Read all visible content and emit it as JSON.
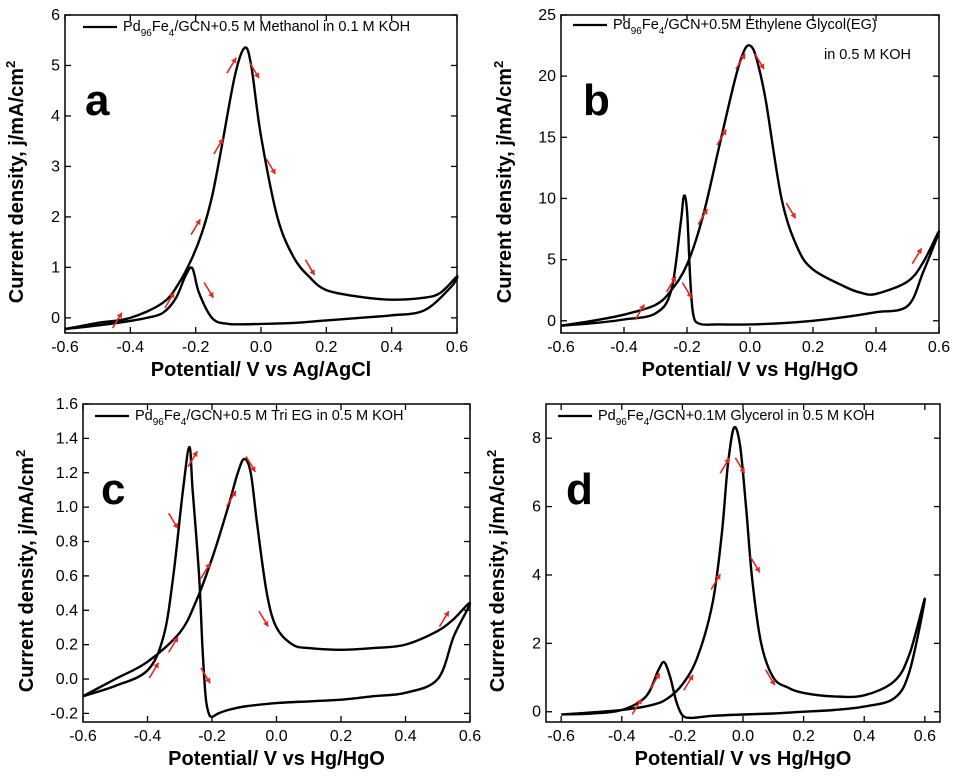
{
  "colors": {
    "curve": "#000000",
    "arrow": "#e8271f"
  },
  "chart_data": [
    {
      "type": "line",
      "letter": "a",
      "legend": {
        "label": "Pd96Fe4/GCN+0.5 M Methanol in 0.1 M KOH",
        "line2": ""
      },
      "xlabel": "Potential/ V vs Ag/AgCl",
      "ylabel": "Current density, j/mA/cm2",
      "xlim": [
        -0.6,
        0.6
      ],
      "ylim": [
        -0.3,
        6
      ],
      "xticks": [
        "-0.6",
        "-0.4",
        "-0.2",
        "0.0",
        "0.2",
        "0.4",
        "0.6"
      ],
      "yticks": [
        "0",
        "1",
        "2",
        "3",
        "4",
        "5",
        "6"
      ],
      "series": [
        {
          "x": [
            -0.6,
            -0.5,
            -0.4,
            -0.3,
            -0.25,
            -0.21,
            -0.18,
            -0.15,
            -0.12,
            -0.08,
            -0.05,
            -0.03,
            0.0,
            0.05,
            0.1,
            0.15,
            0.2,
            0.3,
            0.4,
            0.5,
            0.55,
            0.6,
            0.58,
            0.5,
            0.4,
            0.3,
            0.2,
            0.1,
            0.0,
            -0.1,
            -0.15,
            -0.19,
            -0.21,
            -0.23,
            -0.26,
            -0.3,
            -0.35,
            -0.4,
            -0.5,
            -0.6
          ],
          "y": [
            -0.22,
            -0.1,
            0.0,
            0.3,
            0.7,
            1.2,
            1.7,
            2.4,
            3.4,
            4.8,
            5.35,
            5.0,
            3.6,
            2.0,
            1.2,
            0.8,
            0.55,
            0.42,
            0.36,
            0.4,
            0.5,
            0.82,
            0.6,
            0.15,
            0.05,
            0.0,
            -0.05,
            -0.1,
            -0.12,
            -0.12,
            0.0,
            0.5,
            0.98,
            0.85,
            0.4,
            0.1,
            0.0,
            -0.06,
            -0.15,
            -0.22
          ]
        }
      ],
      "arrows": [
        {
          "x": -0.44,
          "y": -0.05,
          "dx": 1,
          "dy": 1
        },
        {
          "x": -0.28,
          "y": 0.35,
          "dx": 1,
          "dy": 1
        },
        {
          "x": -0.2,
          "y": 1.8,
          "dx": 1,
          "dy": 1
        },
        {
          "x": -0.13,
          "y": 3.4,
          "dx": 1,
          "dy": 1
        },
        {
          "x": -0.09,
          "y": 5.0,
          "dx": 1,
          "dy": 1
        },
        {
          "x": -0.02,
          "y": 4.9,
          "dx": 1,
          "dy": -1
        },
        {
          "x": 0.03,
          "y": 3.0,
          "dx": 1,
          "dy": -1
        },
        {
          "x": 0.15,
          "y": 1.0,
          "dx": 1,
          "dy": -1
        },
        {
          "x": -0.16,
          "y": 0.55,
          "dx": 1,
          "dy": -1
        }
      ]
    },
    {
      "type": "line",
      "letter": "b",
      "legend": {
        "label": "Pd96Fe4/GCN+0.5M Ethylene Glycol(EG)",
        "line2": "in 0.5 M KOH"
      },
      "xlabel": "Potential/ V vs Hg/HgO",
      "ylabel": "Current density, j/mA/cm2",
      "xlim": [
        -0.6,
        0.6
      ],
      "ylim": [
        -1,
        25
      ],
      "xticks": [
        "-0.6",
        "-0.4",
        "-0.2",
        "0.0",
        "0.2",
        "0.4",
        "0.6"
      ],
      "yticks": [
        "0",
        "5",
        "10",
        "15",
        "20",
        "25"
      ],
      "series": [
        {
          "x": [
            -0.6,
            -0.5,
            -0.4,
            -0.3,
            -0.25,
            -0.2,
            -0.15,
            -0.1,
            -0.05,
            -0.02,
            0.0,
            0.02,
            0.05,
            0.1,
            0.15,
            0.2,
            0.3,
            0.35,
            0.4,
            0.5,
            0.55,
            0.6,
            0.55,
            0.5,
            0.4,
            0.3,
            0.2,
            0.1,
            0.0,
            -0.1,
            -0.16,
            -0.18,
            -0.19,
            -0.2,
            -0.21,
            -0.22,
            -0.25,
            -0.3,
            -0.4,
            -0.5,
            -0.6
          ],
          "y": [
            -0.4,
            0.0,
            0.5,
            1.3,
            2.5,
            4.6,
            8.5,
            14.0,
            19.5,
            22.0,
            22.5,
            21.5,
            18.0,
            10.0,
            6.0,
            4.2,
            2.8,
            2.3,
            2.2,
            3.2,
            4.8,
            7.3,
            4.0,
            1.2,
            0.7,
            0.3,
            0.0,
            -0.2,
            -0.3,
            -0.3,
            -0.25,
            0.5,
            3.5,
            9.0,
            10.2,
            8.0,
            2.5,
            0.6,
            0.1,
            -0.2,
            -0.4
          ]
        }
      ],
      "arrows": [
        {
          "x": -0.35,
          "y": 0.7,
          "dx": 1,
          "dy": 1
        },
        {
          "x": -0.25,
          "y": 3.0,
          "dx": 1,
          "dy": 1
        },
        {
          "x": -0.15,
          "y": 8.5,
          "dx": 1,
          "dy": 1
        },
        {
          "x": -0.09,
          "y": 15.0,
          "dx": 1,
          "dy": 1
        },
        {
          "x": -0.03,
          "y": 21.2,
          "dx": 1,
          "dy": 1
        },
        {
          "x": 0.03,
          "y": 21.2,
          "dx": 1,
          "dy": -1
        },
        {
          "x": 0.13,
          "y": 9.0,
          "dx": 1,
          "dy": -1
        },
        {
          "x": 0.53,
          "y": 5.3,
          "dx": 1,
          "dy": 1
        },
        {
          "x": -0.2,
          "y": 2.5,
          "dx": 1,
          "dy": -1
        }
      ]
    },
    {
      "type": "line",
      "letter": "c",
      "legend": {
        "label": "Pd96Fe4/GCN+0.5 M Tri EG in 0.5 M KOH",
        "line2": ""
      },
      "xlabel": "Potential/ V vs Hg/HgO",
      "ylabel": "Current density, j/mA/cm2",
      "xlim": [
        -0.6,
        0.6
      ],
      "ylim": [
        -0.25,
        1.6
      ],
      "xticks": [
        "-0.6",
        "-0.4",
        "-0.2",
        "0.0",
        "0.2",
        "0.4",
        "0.6"
      ],
      "yticks": [
        "-0.2",
        "0.0",
        "0.2",
        "0.4",
        "0.6",
        "0.8",
        "1.0",
        "1.2",
        "1.4",
        "1.6"
      ],
      "series": [
        {
          "x": [
            -0.6,
            -0.5,
            -0.4,
            -0.3,
            -0.25,
            -0.2,
            -0.15,
            -0.12,
            -0.1,
            -0.08,
            -0.06,
            -0.03,
            0.0,
            0.05,
            0.1,
            0.2,
            0.3,
            0.4,
            0.5,
            0.55,
            0.6,
            0.55,
            0.5,
            0.4,
            0.3,
            0.2,
            0.1,
            0.0,
            -0.1,
            -0.15,
            -0.18,
            -0.2,
            -0.21,
            -0.22,
            -0.23,
            -0.24,
            -0.26,
            -0.27,
            -0.29,
            -0.32,
            -0.35,
            -0.4,
            -0.5,
            -0.6
          ],
          "y": [
            -0.1,
            0.0,
            0.1,
            0.27,
            0.45,
            0.7,
            1.0,
            1.2,
            1.28,
            1.2,
            0.9,
            0.5,
            0.3,
            0.2,
            0.18,
            0.17,
            0.18,
            0.2,
            0.28,
            0.35,
            0.44,
            0.25,
            0.0,
            -0.08,
            -0.1,
            -0.12,
            -0.13,
            -0.14,
            -0.16,
            -0.18,
            -0.2,
            -0.22,
            -0.2,
            -0.1,
            0.2,
            0.6,
            1.1,
            1.35,
            1.1,
            0.6,
            0.25,
            0.05,
            -0.04,
            -0.1
          ]
        }
      ],
      "arrows": [
        {
          "x": -0.38,
          "y": 0.05,
          "dx": 1,
          "dy": 1
        },
        {
          "x": -0.32,
          "y": 0.2,
          "dx": 1,
          "dy": 1
        },
        {
          "x": -0.22,
          "y": 0.63,
          "dx": 1,
          "dy": 1
        },
        {
          "x": -0.14,
          "y": 1.05,
          "dx": 1,
          "dy": 1
        },
        {
          "x": -0.26,
          "y": 1.28,
          "dx": 1,
          "dy": 1
        },
        {
          "x": -0.08,
          "y": 1.25,
          "dx": 1,
          "dy": -1
        },
        {
          "x": -0.32,
          "y": 0.92,
          "dx": 1,
          "dy": -1
        },
        {
          "x": -0.04,
          "y": 0.35,
          "dx": 1,
          "dy": -1
        },
        {
          "x": -0.22,
          "y": 0.02,
          "dx": 1,
          "dy": -1
        },
        {
          "x": 0.52,
          "y": 0.35,
          "dx": 1,
          "dy": 1
        }
      ]
    },
    {
      "type": "line",
      "letter": "d",
      "legend": {
        "label": "Pd96Fe4/GCN+0.1M Glycerol in 0.5 M KOH",
        "line2": ""
      },
      "xlabel": "Potential/ V vs Hg/HgO",
      "ylabel": "Current density, j/mA/cm2",
      "xlim": [
        -0.65,
        0.65
      ],
      "ylim": [
        -0.3,
        9
      ],
      "xticks": [
        "-0.6",
        "-0.4",
        "-0.2",
        "0.0",
        "0.2",
        "0.4",
        "0.6"
      ],
      "yticks": [
        "0",
        "2",
        "4",
        "6",
        "8"
      ],
      "series": [
        {
          "x": [
            -0.6,
            -0.5,
            -0.4,
            -0.3,
            -0.25,
            -0.2,
            -0.15,
            -0.1,
            -0.07,
            -0.05,
            -0.03,
            -0.01,
            0.01,
            0.03,
            0.06,
            0.1,
            0.15,
            0.2,
            0.3,
            0.4,
            0.5,
            0.55,
            0.6,
            0.55,
            0.5,
            0.4,
            0.3,
            0.2,
            0.1,
            0.0,
            -0.1,
            -0.17,
            -0.2,
            -0.22,
            -0.24,
            -0.26,
            -0.28,
            -0.32,
            -0.4,
            -0.5,
            -0.6
          ],
          "y": [
            -0.08,
            -0.02,
            0.05,
            0.2,
            0.38,
            0.8,
            1.6,
            3.2,
            5.2,
            7.2,
            8.3,
            7.8,
            6.0,
            3.9,
            2.0,
            1.0,
            0.7,
            0.55,
            0.45,
            0.48,
            0.9,
            1.7,
            3.3,
            1.2,
            0.4,
            0.15,
            0.05,
            0.0,
            -0.05,
            -0.08,
            -0.12,
            -0.18,
            -0.1,
            0.3,
            1.0,
            1.45,
            1.2,
            0.45,
            0.05,
            -0.05,
            -0.08
          ]
        }
      ],
      "arrows": [
        {
          "x": -0.35,
          "y": 0.15,
          "dx": 1,
          "dy": 1
        },
        {
          "x": -0.29,
          "y": 0.9,
          "dx": 1,
          "dy": 1
        },
        {
          "x": -0.18,
          "y": 0.85,
          "dx": 1,
          "dy": 1
        },
        {
          "x": -0.09,
          "y": 3.8,
          "dx": 1,
          "dy": 1
        },
        {
          "x": -0.06,
          "y": 7.2,
          "dx": 1,
          "dy": 1
        },
        {
          "x": -0.01,
          "y": 7.2,
          "dx": 1,
          "dy": -1
        },
        {
          "x": 0.04,
          "y": 4.3,
          "dx": 1,
          "dy": -1
        },
        {
          "x": 0.09,
          "y": 1.0,
          "dx": 1,
          "dy": -1
        }
      ]
    }
  ]
}
